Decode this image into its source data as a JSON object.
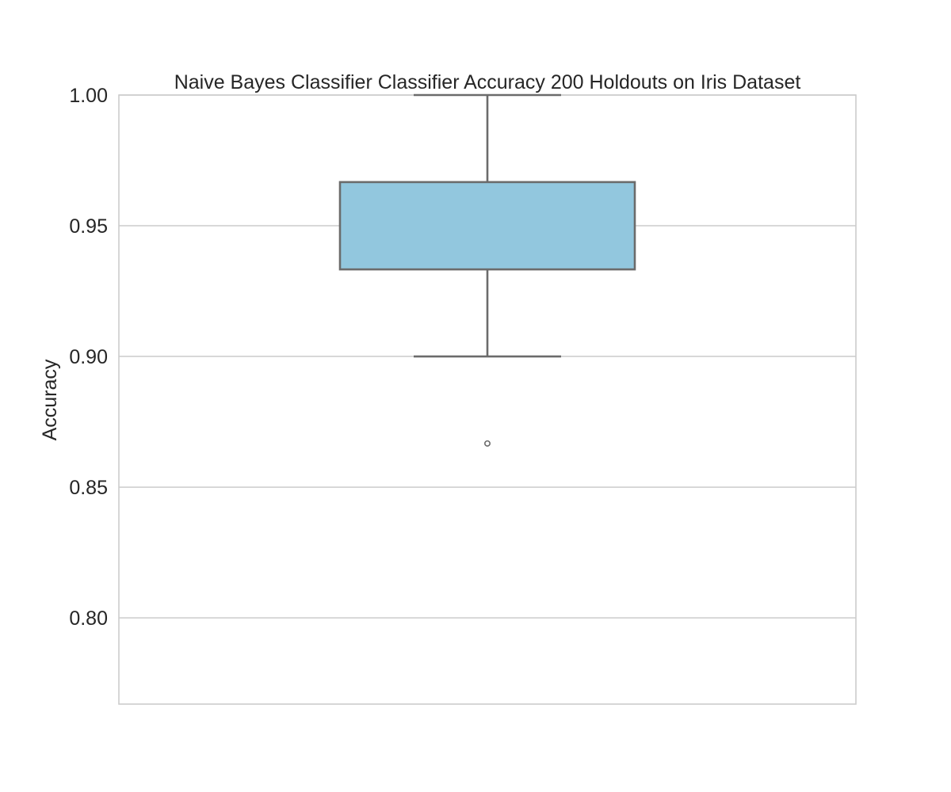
{
  "chart_data": {
    "type": "box",
    "title": "Naive Bayes Classifier Classifier Accuracy 200 Holdouts on Iris Dataset",
    "xlabel": "",
    "ylabel": "Accuracy",
    "ylim": [
      0.767,
      1.0
    ],
    "yticks": [
      1.0,
      0.95,
      0.9,
      0.85,
      0.8
    ],
    "ytick_labels": [
      "1.00",
      "0.95",
      "0.90",
      "0.85",
      "0.80"
    ],
    "grid": true,
    "box": {
      "whisker_low": 0.9,
      "q1": 0.9333,
      "q3": 0.9667,
      "whisker_high": 1.0,
      "outliers": [
        0.8667
      ]
    },
    "colors": {
      "box_fill": "#92c7de",
      "box_edge": "#6b6b6b",
      "grid": "#cccccc",
      "frame": "#cccccc"
    }
  }
}
